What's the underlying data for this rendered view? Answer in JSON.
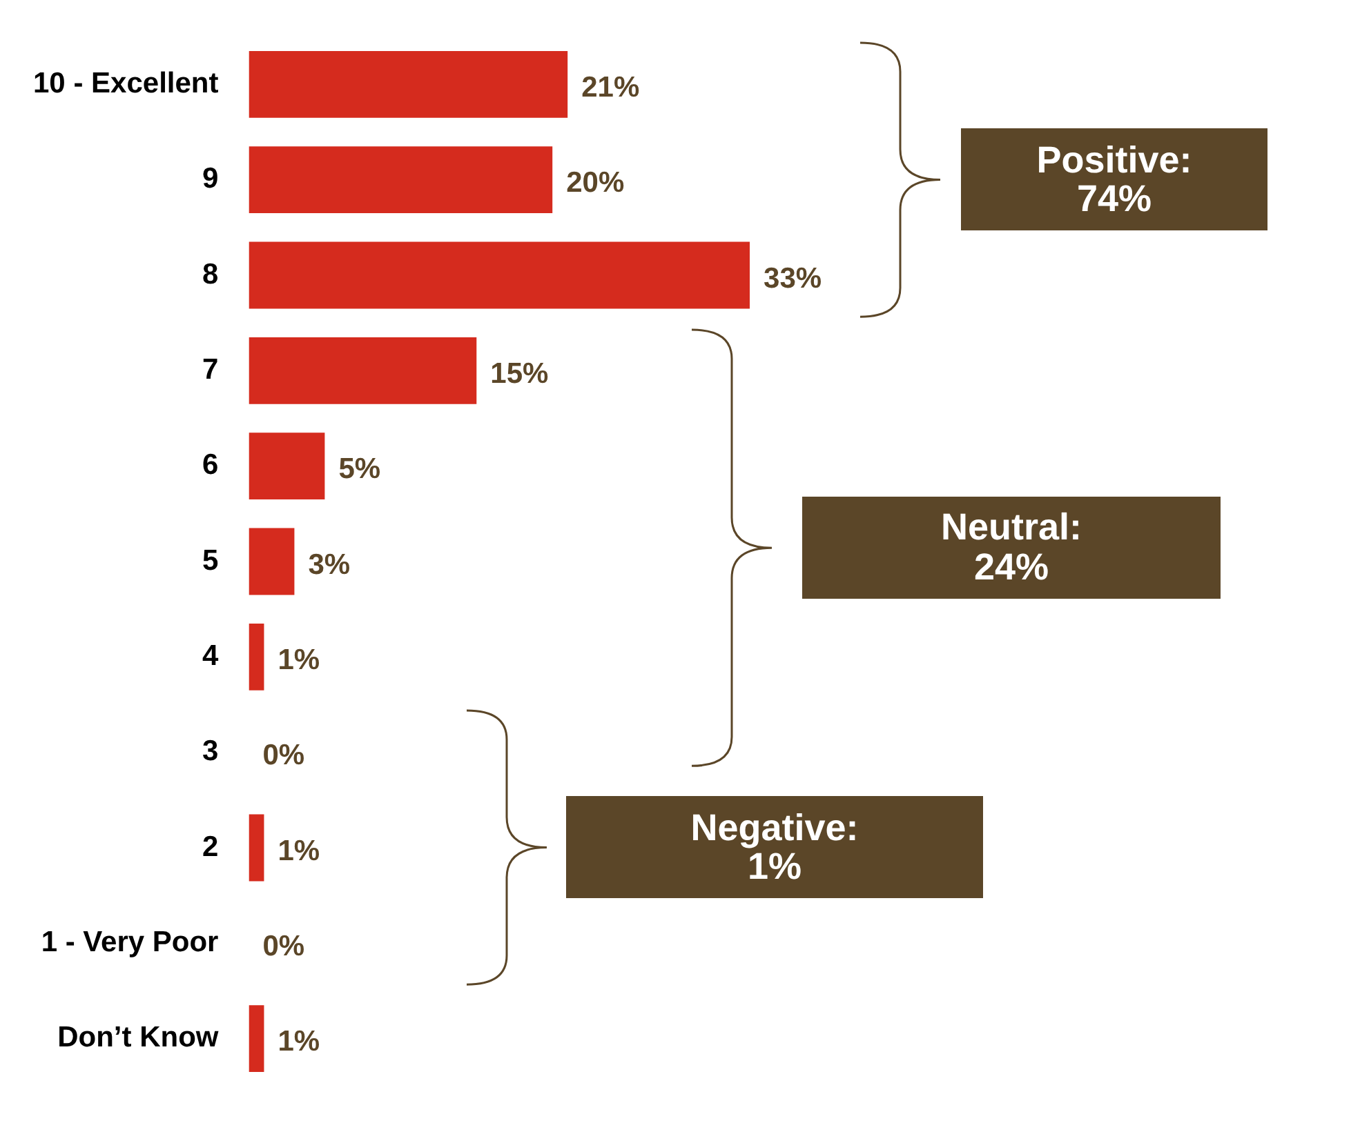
{
  "chart_data": {
    "type": "bar",
    "orientation": "horizontal",
    "categories": [
      "10 - Excellent",
      "9",
      "8",
      "7",
      "6",
      "5",
      "4",
      "3",
      "2",
      "1 - Very Poor",
      "Don’t Know"
    ],
    "values": [
      21,
      20,
      33,
      15,
      5,
      3,
      1,
      0,
      1,
      0,
      1
    ],
    "value_labels": [
      "21%",
      "20%",
      "33%",
      "15%",
      "5%",
      "3%",
      "1%",
      "0%",
      "1%",
      "0%",
      "1%"
    ],
    "color": "#d52b1e",
    "tick_labels": "y",
    "grid": false,
    "legend": false,
    "annotations": [
      "Positive: 74%",
      "Neutral: 24%",
      "Negative: 1%"
    ]
  }
}
